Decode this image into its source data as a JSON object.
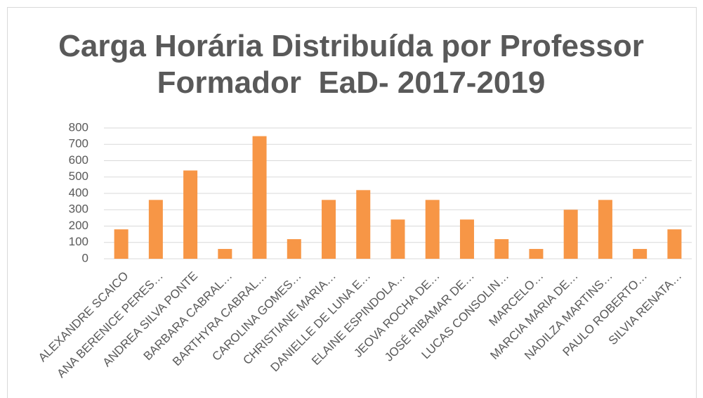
{
  "chart_data": {
    "type": "bar",
    "title": "Carga Horária Distribuída por Professor Formador  EaD- 2017-2019",
    "categories": [
      "ALEXANDRE SCAICO",
      "ANA BERENICE PERES…",
      "ANDREA SILVA PONTE",
      "BARBARA CABRAL…",
      "BARTHYRA CABRAL…",
      "CAROLINA GOMES…",
      "CHRISTIANE MARIA…",
      "DANIELLE DE LUNA E…",
      "ELAINE ESPINDOLA…",
      "JEOVA ROCHA DE…",
      "JOSÉ RIBAMAR DE…",
      "LUCAS CONSOLIN…",
      "MARCELO…",
      "MARCIA MARIA DE…",
      "NADILZA MARTINS…",
      "PAULO ROBERTO…",
      "SILVIA RENATA…"
    ],
    "values": [
      180,
      360,
      540,
      60,
      750,
      120,
      360,
      420,
      240,
      360,
      240,
      120,
      60,
      300,
      360,
      60,
      180
    ],
    "color": "#f79646",
    "ylim": [
      0,
      800
    ],
    "yticks": [
      0,
      100,
      200,
      300,
      400,
      500,
      600,
      700,
      800
    ],
    "grid": true
  }
}
